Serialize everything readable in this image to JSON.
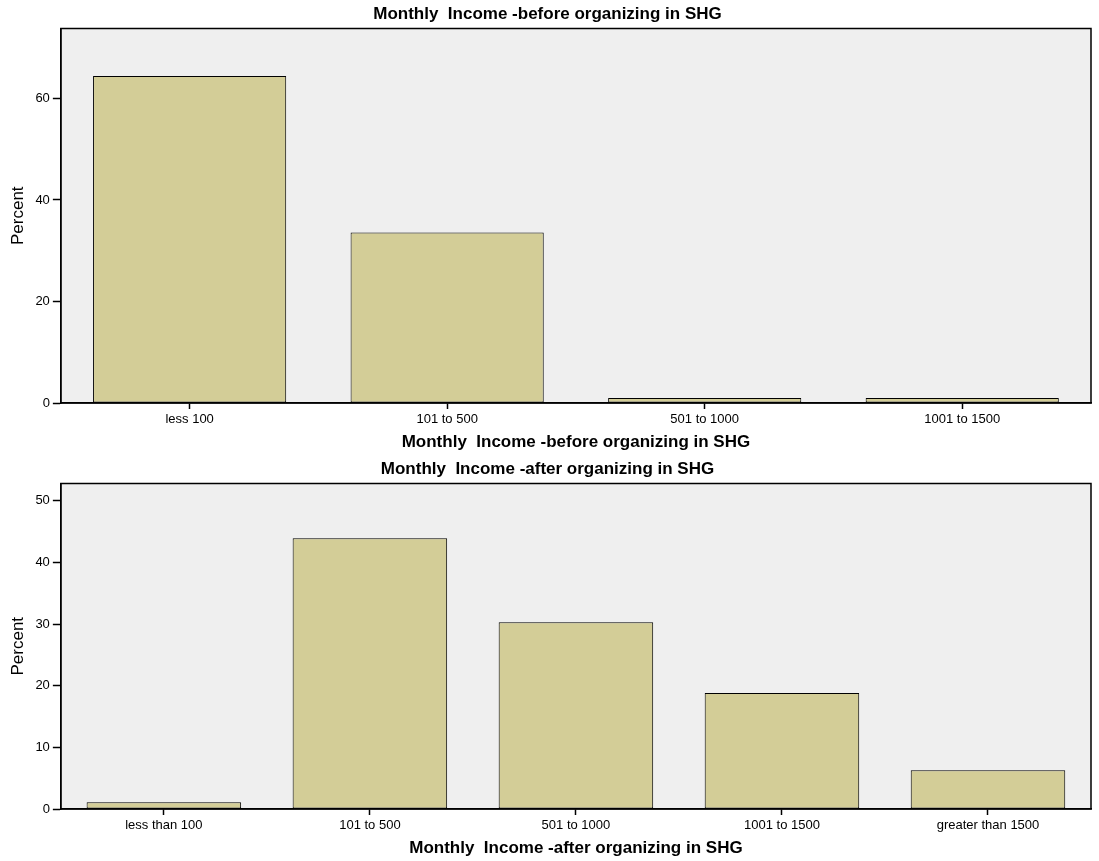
{
  "chart_data": [
    {
      "type": "bar",
      "title": "Monthly  Income -before organizing in SHG",
      "xlabel": "Monthly  Income -before organizing in SHG",
      "ylabel": "Percent",
      "categories": [
        "less 100",
        "101 to 500",
        "501 to 1000",
        "1001 to 1500"
      ],
      "values": [
        64.4,
        33.6,
        1.0,
        1.0
      ],
      "color": "#d3cd97",
      "ylim": [
        0,
        73.8
      ],
      "yticks": [
        0,
        20,
        40,
        60
      ],
      "grid": false,
      "legend": false
    },
    {
      "type": "bar",
      "title": "Monthly  Income -after organizing in SHG",
      "xlabel": "Monthly  Income -after organizing in SHG",
      "ylabel": "Percent",
      "categories": [
        "less than 100",
        "101 to 500",
        "501 to 1000",
        "1001 to 1500",
        "greater than 1500"
      ],
      "values": [
        1.1,
        43.9,
        30.3,
        18.8,
        6.3
      ],
      "color": "#d3cd97",
      "ylim": [
        0,
        52.8
      ],
      "yticks": [
        0,
        10,
        20,
        30,
        40,
        50
      ],
      "grid": false,
      "legend": false
    }
  ]
}
